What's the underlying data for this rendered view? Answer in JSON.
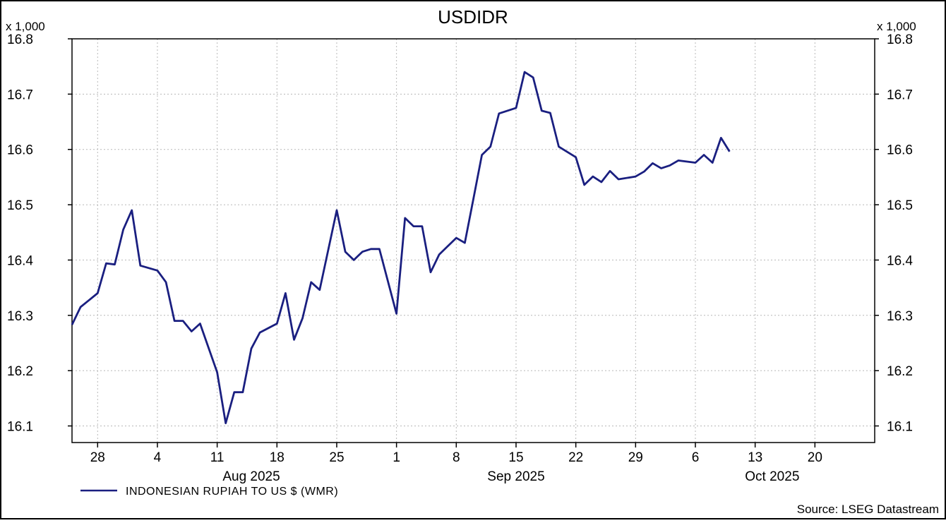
{
  "chart_data": {
    "type": "line",
    "title": "USDIDR",
    "scale_label_left": "x 1,000",
    "scale_label_right": "x 1,000",
    "y_ticks": [
      "16.1",
      "16.2",
      "16.3",
      "16.4",
      "16.5",
      "16.6",
      "16.7",
      "16.8"
    ],
    "ylim": [
      16.07,
      16.8
    ],
    "x_range": [
      "2025-07-25",
      "2025-10-27"
    ],
    "x_ticks": [
      {
        "label": "28",
        "date": "2025-07-28"
      },
      {
        "label": "4",
        "date": "2025-08-04"
      },
      {
        "label": "11",
        "date": "2025-08-11"
      },
      {
        "label": "18",
        "date": "2025-08-18"
      },
      {
        "label": "25",
        "date": "2025-08-25"
      },
      {
        "label": "1",
        "date": "2025-09-01"
      },
      {
        "label": "8",
        "date": "2025-09-08"
      },
      {
        "label": "15",
        "date": "2025-09-15"
      },
      {
        "label": "22",
        "date": "2025-09-22"
      },
      {
        "label": "29",
        "date": "2025-09-29"
      },
      {
        "label": "6",
        "date": "2025-10-06"
      },
      {
        "label": "13",
        "date": "2025-10-13"
      },
      {
        "label": "20",
        "date": "2025-10-20"
      }
    ],
    "month_labels": [
      {
        "label": "Aug 2025",
        "date": "2025-08-15"
      },
      {
        "label": "Sep 2025",
        "date": "2025-09-15"
      },
      {
        "label": "Oct 2025",
        "date": "2025-10-15"
      }
    ],
    "grid": true,
    "legend_position": "bottom-left",
    "series": [
      {
        "name": "INDONESIAN RUPIAH TO US $ (WMR)",
        "color": "#1a1f80",
        "points": [
          [
            "2025-07-25",
            16.283
          ],
          [
            "2025-07-26",
            16.315
          ],
          [
            "2025-07-28",
            16.34
          ],
          [
            "2025-07-29",
            16.394
          ],
          [
            "2025-07-30",
            16.392
          ],
          [
            "2025-07-31",
            16.455
          ],
          [
            "2025-08-01",
            16.49
          ],
          [
            "2025-08-02",
            16.39
          ],
          [
            "2025-08-04",
            16.381
          ],
          [
            "2025-08-05",
            16.36
          ],
          [
            "2025-08-06",
            16.29
          ],
          [
            "2025-08-07",
            16.29
          ],
          [
            "2025-08-08",
            16.271
          ],
          [
            "2025-08-09",
            16.285
          ],
          [
            "2025-08-11",
            16.197
          ],
          [
            "2025-08-12",
            16.105
          ],
          [
            "2025-08-13",
            16.161
          ],
          [
            "2025-08-14",
            16.161
          ],
          [
            "2025-08-15",
            16.24
          ],
          [
            "2025-08-16",
            16.269
          ],
          [
            "2025-08-18",
            16.285
          ],
          [
            "2025-08-19",
            16.34
          ],
          [
            "2025-08-20",
            16.256
          ],
          [
            "2025-08-21",
            16.295
          ],
          [
            "2025-08-22",
            16.36
          ],
          [
            "2025-08-23",
            16.346
          ],
          [
            "2025-08-25",
            16.49
          ],
          [
            "2025-08-26",
            16.415
          ],
          [
            "2025-08-27",
            16.4
          ],
          [
            "2025-08-28",
            16.415
          ],
          [
            "2025-08-29",
            16.42
          ],
          [
            "2025-08-30",
            16.42
          ],
          [
            "2025-09-01",
            16.303
          ],
          [
            "2025-09-02",
            16.476
          ],
          [
            "2025-09-03",
            16.461
          ],
          [
            "2025-09-04",
            16.461
          ],
          [
            "2025-09-05",
            16.378
          ],
          [
            "2025-09-06",
            16.41
          ],
          [
            "2025-09-08",
            16.44
          ],
          [
            "2025-09-09",
            16.431
          ],
          [
            "2025-09-10",
            16.51
          ],
          [
            "2025-09-11",
            16.59
          ],
          [
            "2025-09-12",
            16.605
          ],
          [
            "2025-09-13",
            16.665
          ],
          [
            "2025-09-15",
            16.675
          ],
          [
            "2025-09-16",
            16.74
          ],
          [
            "2025-09-17",
            16.73
          ],
          [
            "2025-09-18",
            16.67
          ],
          [
            "2025-09-19",
            16.666
          ],
          [
            "2025-09-20",
            16.605
          ],
          [
            "2025-09-22",
            16.586
          ],
          [
            "2025-09-23",
            16.536
          ],
          [
            "2025-09-24",
            16.551
          ],
          [
            "2025-09-25",
            16.541
          ],
          [
            "2025-09-26",
            16.561
          ],
          [
            "2025-09-27",
            16.546
          ],
          [
            "2025-09-29",
            16.551
          ],
          [
            "2025-09-30",
            16.56
          ],
          [
            "2025-10-01",
            16.575
          ],
          [
            "2025-10-02",
            16.566
          ],
          [
            "2025-10-03",
            16.571
          ],
          [
            "2025-10-04",
            16.58
          ],
          [
            "2025-10-06",
            16.576
          ],
          [
            "2025-10-07",
            16.59
          ],
          [
            "2025-10-08",
            16.576
          ],
          [
            "2025-10-09",
            16.621
          ],
          [
            "2025-10-10",
            16.596
          ]
        ]
      }
    ],
    "source": "Source: LSEG Datastream"
  }
}
